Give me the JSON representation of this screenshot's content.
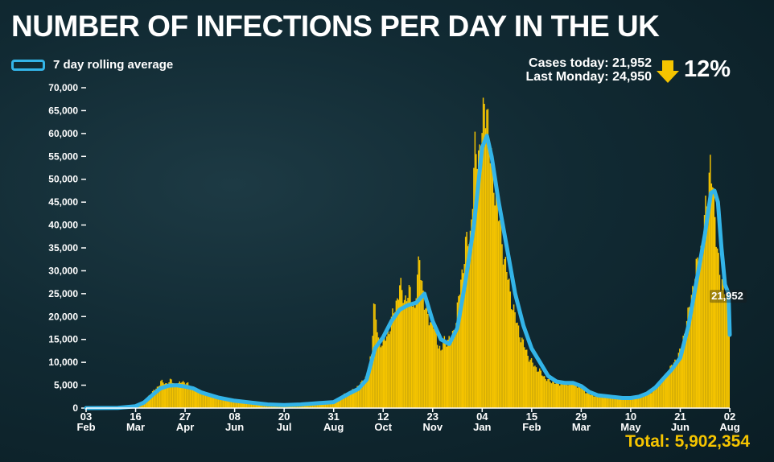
{
  "title": "NUMBER OF INFECTIONS PER DAY IN THE UK",
  "legend": {
    "label": "7 day rolling average"
  },
  "stats": {
    "cases_today": "Cases today: 21,952",
    "last_monday": "Last Monday: 24,950",
    "change": "12%"
  },
  "total": "Total: 5,902,354",
  "colors": {
    "bars": "#f5c400",
    "line": "#33b4e8",
    "axis": "#ffffff",
    "arrow": "#f5c400"
  },
  "chart_data": {
    "type": "bar",
    "y_ticks": [
      0,
      5000,
      10000,
      15000,
      20000,
      25000,
      30000,
      35000,
      40000,
      45000,
      50000,
      55000,
      60000,
      65000,
      70000
    ],
    "y_tick_labels": [
      "0",
      "5,000",
      "10,000",
      "15,000",
      "20,000",
      "25,000",
      "30,000",
      "35,000",
      "40,000",
      "45,000",
      "50,000",
      "55,000",
      "60,000",
      "65,000",
      "70,000"
    ],
    "ylim": [
      0,
      70000
    ],
    "x_range": [
      "2020-02-03",
      "2021-08-02"
    ],
    "x_ticks": [
      {
        "date": "2020-02-03",
        "day": "03",
        "month": "Feb"
      },
      {
        "date": "2020-03-16",
        "day": "16",
        "month": "Mar"
      },
      {
        "date": "2020-04-27",
        "day": "27",
        "month": "Apr"
      },
      {
        "date": "2020-06-08",
        "day": "08",
        "month": "Jun"
      },
      {
        "date": "2020-07-20",
        "day": "20",
        "month": "Jul"
      },
      {
        "date": "2020-08-31",
        "day": "31",
        "month": "Aug"
      },
      {
        "date": "2020-10-12",
        "day": "12",
        "month": "Oct"
      },
      {
        "date": "2020-11-23",
        "day": "23",
        "month": "Nov"
      },
      {
        "date": "2021-01-04",
        "day": "04",
        "month": "Jan"
      },
      {
        "date": "2021-02-15",
        "day": "15",
        "month": "Feb"
      },
      {
        "date": "2021-03-29",
        "day": "29",
        "month": "Mar"
      },
      {
        "date": "2021-05-10",
        "day": "10",
        "month": "May"
      },
      {
        "date": "2021-06-21",
        "day": "21",
        "month": "Jun"
      },
      {
        "date": "2021-08-02",
        "day": "02",
        "month": "Aug"
      }
    ],
    "series": [
      {
        "type": "bar",
        "points": [
          [
            "2020-02-03",
            0
          ],
          [
            "2020-03-01",
            50
          ],
          [
            "2020-03-16",
            600
          ],
          [
            "2020-03-23",
            1500
          ],
          [
            "2020-03-28",
            3000
          ],
          [
            "2020-04-03",
            4500
          ],
          [
            "2020-04-06",
            5800
          ],
          [
            "2020-04-10",
            5300
          ],
          [
            "2020-04-15",
            6000
          ],
          [
            "2020-04-20",
            4800
          ],
          [
            "2020-04-24",
            6000
          ],
          [
            "2020-04-28",
            5300
          ],
          [
            "2020-05-05",
            4200
          ],
          [
            "2020-05-15",
            3200
          ],
          [
            "2020-05-29",
            2200
          ],
          [
            "2020-06-08",
            1600
          ],
          [
            "2020-06-22",
            1200
          ],
          [
            "2020-07-06",
            700
          ],
          [
            "2020-07-20",
            650
          ],
          [
            "2020-08-03",
            850
          ],
          [
            "2020-08-17",
            1100
          ],
          [
            "2020-08-31",
            1500
          ],
          [
            "2020-09-07",
            2700
          ],
          [
            "2020-09-14",
            3500
          ],
          [
            "2020-09-21",
            4800
          ],
          [
            "2020-09-28",
            7000
          ],
          [
            "2020-10-02",
            12000
          ],
          [
            "2020-10-04",
            23000
          ],
          [
            "2020-10-08",
            15000
          ],
          [
            "2020-10-12",
            14000
          ],
          [
            "2020-10-17",
            17000
          ],
          [
            "2020-10-22",
            22000
          ],
          [
            "2020-10-26",
            26500
          ],
          [
            "2020-10-30",
            24000
          ],
          [
            "2020-11-04",
            25000
          ],
          [
            "2020-11-08",
            22000
          ],
          [
            "2020-11-12",
            33500
          ],
          [
            "2020-11-16",
            22000
          ],
          [
            "2020-11-20",
            20000
          ],
          [
            "2020-11-25",
            17000
          ],
          [
            "2020-11-30",
            12000
          ],
          [
            "2020-12-03",
            15000
          ],
          [
            "2020-12-08",
            14500
          ],
          [
            "2020-12-13",
            19000
          ],
          [
            "2020-12-17",
            28000
          ],
          [
            "2020-12-21",
            35000
          ],
          [
            "2020-12-25",
            38000
          ],
          [
            "2020-12-29",
            55000
          ],
          [
            "2021-01-02",
            57000
          ],
          [
            "2021-01-05",
            62000
          ],
          [
            "2021-01-08",
            68000
          ],
          [
            "2021-01-11",
            55000
          ],
          [
            "2021-01-15",
            48000
          ],
          [
            "2021-01-19",
            40000
          ],
          [
            "2021-01-23",
            33000
          ],
          [
            "2021-01-28",
            25000
          ],
          [
            "2021-02-02",
            19000
          ],
          [
            "2021-02-08",
            14000
          ],
          [
            "2021-02-15",
            10000
          ],
          [
            "2021-02-22",
            8000
          ],
          [
            "2021-03-01",
            6000
          ],
          [
            "2021-03-08",
            5500
          ],
          [
            "2021-03-15",
            5200
          ],
          [
            "2021-03-22",
            5600
          ],
          [
            "2021-03-29",
            4400
          ],
          [
            "2021-04-05",
            3000
          ],
          [
            "2021-04-12",
            2600
          ],
          [
            "2021-04-19",
            2400
          ],
          [
            "2021-04-26",
            2300
          ],
          [
            "2021-05-03",
            2200
          ],
          [
            "2021-05-10",
            2100
          ],
          [
            "2021-05-17",
            2300
          ],
          [
            "2021-05-24",
            3000
          ],
          [
            "2021-05-31",
            4000
          ],
          [
            "2021-06-07",
            6500
          ],
          [
            "2021-06-14",
            9000
          ],
          [
            "2021-06-21",
            12000
          ],
          [
            "2021-06-28",
            20000
          ],
          [
            "2021-07-03",
            28000
          ],
          [
            "2021-07-08",
            33000
          ],
          [
            "2021-07-12",
            40000
          ],
          [
            "2021-07-15",
            48000
          ],
          [
            "2021-07-17",
            54500
          ],
          [
            "2021-07-20",
            44000
          ],
          [
            "2021-07-23",
            36000
          ],
          [
            "2021-07-26",
            26000
          ],
          [
            "2021-07-29",
            27000
          ],
          [
            "2021-08-02",
            21952
          ]
        ]
      },
      {
        "name": "7 day rolling average",
        "type": "line",
        "points": [
          [
            "2020-02-03",
            0
          ],
          [
            "2020-03-01",
            30
          ],
          [
            "2020-03-16",
            400
          ],
          [
            "2020-03-23",
            1200
          ],
          [
            "2020-03-30",
            2800
          ],
          [
            "2020-04-06",
            4300
          ],
          [
            "2020-04-13",
            4900
          ],
          [
            "2020-04-20",
            5000
          ],
          [
            "2020-04-27",
            4700
          ],
          [
            "2020-05-04",
            4300
          ],
          [
            "2020-05-11",
            3400
          ],
          [
            "2020-05-25",
            2300
          ],
          [
            "2020-06-08",
            1600
          ],
          [
            "2020-06-22",
            1200
          ],
          [
            "2020-07-06",
            800
          ],
          [
            "2020-07-20",
            650
          ],
          [
            "2020-08-03",
            800
          ],
          [
            "2020-08-17",
            1050
          ],
          [
            "2020-08-31",
            1300
          ],
          [
            "2020-09-07",
            2300
          ],
          [
            "2020-09-14",
            3300
          ],
          [
            "2020-09-21",
            4200
          ],
          [
            "2020-09-28",
            6200
          ],
          [
            "2020-10-05",
            13000
          ],
          [
            "2020-10-12",
            15500
          ],
          [
            "2020-10-19",
            19000
          ],
          [
            "2020-10-26",
            21500
          ],
          [
            "2020-11-02",
            22500
          ],
          [
            "2020-11-09",
            23000
          ],
          [
            "2020-11-16",
            25000
          ],
          [
            "2020-11-23",
            19000
          ],
          [
            "2020-11-30",
            15000
          ],
          [
            "2020-12-07",
            14000
          ],
          [
            "2020-12-14",
            17500
          ],
          [
            "2020-12-21",
            28000
          ],
          [
            "2020-12-28",
            40000
          ],
          [
            "2021-01-04",
            57000
          ],
          [
            "2021-01-08",
            59500
          ],
          [
            "2021-01-12",
            55000
          ],
          [
            "2021-01-18",
            45000
          ],
          [
            "2021-01-25",
            35000
          ],
          [
            "2021-02-01",
            25000
          ],
          [
            "2021-02-08",
            18000
          ],
          [
            "2021-02-15",
            13000
          ],
          [
            "2021-02-22",
            10000
          ],
          [
            "2021-03-01",
            7000
          ],
          [
            "2021-03-08",
            5800
          ],
          [
            "2021-03-15",
            5500
          ],
          [
            "2021-03-22",
            5500
          ],
          [
            "2021-03-29",
            4800
          ],
          [
            "2021-04-05",
            3500
          ],
          [
            "2021-04-12",
            2800
          ],
          [
            "2021-04-19",
            2600
          ],
          [
            "2021-04-26",
            2400
          ],
          [
            "2021-05-03",
            2200
          ],
          [
            "2021-05-10",
            2200
          ],
          [
            "2021-05-17",
            2500
          ],
          [
            "2021-05-24",
            3200
          ],
          [
            "2021-05-31",
            4500
          ],
          [
            "2021-06-07",
            6500
          ],
          [
            "2021-06-14",
            8500
          ],
          [
            "2021-06-21",
            11000
          ],
          [
            "2021-06-28",
            18000
          ],
          [
            "2021-07-05",
            28000
          ],
          [
            "2021-07-12",
            38000
          ],
          [
            "2021-07-17",
            47000
          ],
          [
            "2021-07-20",
            47500
          ],
          [
            "2021-07-23",
            45000
          ],
          [
            "2021-07-26",
            35000
          ],
          [
            "2021-07-29",
            27000
          ],
          [
            "2021-08-01",
            25000
          ],
          [
            "2021-08-02",
            16000
          ]
        ]
      }
    ],
    "annotations": [
      {
        "text": "21,952",
        "date": "2021-08-02",
        "value": 21952
      }
    ]
  }
}
